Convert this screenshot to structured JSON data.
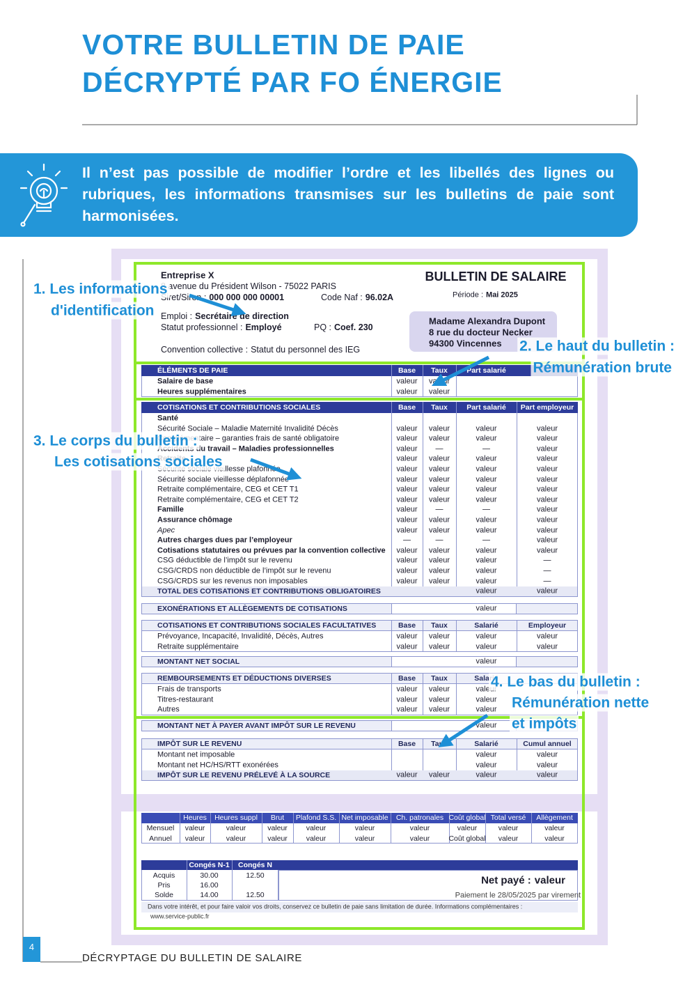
{
  "header": {
    "title": [
      "VOTRE BULLETIN DE PAIE",
      "DÉCRYPTÉ PAR FO ÉNERGIE"
    ]
  },
  "info_box": {
    "text": "Il n’est pas possible de modifier l’ordre et les libellés des lignes ou rubriques, les informations transmises sur les bulletins de paie sont harmonisées."
  },
  "payslip": {
    "company": "Entreprise X",
    "address": "8 avenue du Président Wilson - 75022 PARIS",
    "id_fields": [
      {
        "label": "Siret/Siren :",
        "value": "000 000 000 00001"
      },
      {
        "label": "Code Naf :",
        "value": "96.02A"
      },
      {
        "label": "Emploi :",
        "value": "Secrétaire de direction"
      },
      {
        "label": "Statut professionnel :",
        "value": "Employé"
      },
      {
        "label": "PQ :",
        "value": "Coef. 230"
      },
      {
        "label": "Convention collective :",
        "value": "Statut du personnel des IEG"
      }
    ],
    "title": "BULLETIN DE SALAIRE",
    "period": {
      "label": "Période :",
      "value": "Mai 2025"
    },
    "employee": [
      "Madame Alexandra Dupont",
      "8 rue du docteur Necker",
      "94300 Vincennes"
    ],
    "sections": [
      {
        "header": [
          "ÉLÉMENTS DE PAIE",
          "Base",
          "Taux",
          "Part salarié"
        ],
        "rows": [
          {
            "cells": [
              "Salaire de base",
              "valeur",
              "valeur"
            ],
            "style": "bold"
          },
          {
            "cells": [
              "Heures supplémentaires",
              "valeur",
              "valeur"
            ],
            "style": "bold"
          }
        ]
      },
      {
        "header": [
          "COTISATIONS ET CONTRIBUTIONS SOCIALES",
          "Base",
          "Taux",
          "Part salarié",
          "Part employeur"
        ],
        "rows": [
          {
            "cells": [
              "Santé"
            ],
            "style": "bold"
          },
          {
            "cells": [
              "Sécurité Sociale – Maladie Maternité Invalidité Décès",
              "valeur",
              "valeur",
              "valeur",
              "valeur"
            ]
          },
          {
            "cells": [
              "Complémentaire – garanties frais de santé obligatoire",
              "valeur",
              "valeur",
              "valeur",
              "valeur"
            ]
          },
          {
            "cells": [
              "Accidents du travail – Maladies professionnelles",
              "valeur",
              "—",
              "—",
              "valeur"
            ],
            "style": "bold"
          },
          {
            "cells": [
              "Retraite",
              "valeur",
              "valeur",
              "valeur",
              "valeur"
            ],
            "style": "bold"
          },
          {
            "cells": [
              "Sécurité sociale vieillesse plafonnée",
              "valeur",
              "valeur",
              "valeur",
              "valeur"
            ]
          },
          {
            "cells": [
              "Sécurité sociale vieillesse déplafonnée",
              "valeur",
              "valeur",
              "valeur",
              "valeur"
            ]
          },
          {
            "cells": [
              "Retraite complémentaire, CEG et CET T1",
              "valeur",
              "valeur",
              "valeur",
              "valeur"
            ]
          },
          {
            "cells": [
              "Retraite complémentaire, CEG et CET T2",
              "valeur",
              "valeur",
              "valeur",
              "valeur"
            ]
          },
          {
            "cells": [
              "Famille",
              "valeur",
              "—",
              "—",
              "valeur"
            ],
            "style": "bold"
          },
          {
            "cells": [
              "Assurance chômage",
              "valeur",
              "valeur",
              "valeur",
              "valeur"
            ],
            "style": "bold"
          },
          {
            "cells": [
              "Apec",
              "valeur",
              "valeur",
              "valeur",
              "valeur"
            ],
            "style": "italic"
          },
          {
            "cells": [
              "Autres charges dues par l’employeur",
              "—",
              "—",
              "—",
              "valeur"
            ],
            "style": "bold"
          },
          {
            "cells": [
              "Cotisations statutaires ou prévues par la convention collective",
              "valeur",
              "valeur",
              "valeur",
              "valeur"
            ],
            "style": "bold"
          },
          {
            "cells": [
              "CSG déductible de l’impôt sur le revenu",
              "valeur",
              "valeur",
              "valeur",
              "—"
            ]
          },
          {
            "cells": [
              "CSG/CRDS non déductible de l’impôt sur le revenu",
              "valeur",
              "valeur",
              "valeur",
              "—"
            ]
          },
          {
            "cells": [
              "CSG/CRDS sur les revenus non imposables",
              "valeur",
              "valeur",
              "valeur",
              "—"
            ]
          },
          {
            "cells": [
              "TOTAL DES COTISATIONS ET CONTRIBUTIONS OBLIGATOIRES",
              null,
              null,
              "valeur",
              "valeur"
            ],
            "style": "total"
          }
        ]
      },
      {
        "label": "EXONÉRATIONS ET ALLÈGEMENTS DE COTISATIONS",
        "value": "valeur"
      },
      {
        "header": [
          "COTISATIONS ET CONTRIBUTIONS SOCIALES FACULTATIVES",
          "Base",
          "Taux",
          "Salarié",
          "Employeur"
        ],
        "rows": [
          {
            "cells": [
              "Prévoyance, Incapacité, Invalidité, Décès, Autres",
              "valeur",
              "valeur",
              "valeur",
              "valeur"
            ]
          },
          {
            "cells": [
              "Retraite supplémentaire",
              "valeur",
              "valeur",
              "valeur",
              "valeur"
            ]
          }
        ]
      },
      {
        "label": "MONTANT NET SOCIAL",
        "value": "valeur"
      },
      {
        "header": [
          "REMBOURSEMENTS ET DÉDUCTIONS DIVERSES",
          "Base",
          "Taux",
          "Salarié"
        ],
        "rows": [
          {
            "cells": [
              "Frais de transports",
              "valeur",
              "valeur",
              "valeur"
            ]
          },
          {
            "cells": [
              "Titres-restaurant",
              "valeur",
              "valeur",
              "valeur"
            ]
          },
          {
            "cells": [
              "Autres",
              "valeur",
              "valeur",
              "valeur"
            ]
          }
        ]
      },
      {
        "label": "MONTANT NET À PAYER AVANT IMPÔT SUR LE REVENU",
        "value": "valeur"
      },
      {
        "header": [
          "IMPÔT SUR LE REVENU",
          "Base",
          "Taux",
          "Salarié",
          "Cumul annuel"
        ],
        "rows": [
          {
            "cells": [
              "Montant net imposable",
              null,
              null,
              "valeur",
              "valeur"
            ]
          },
          {
            "cells": [
              "Montant net HC/HS/RTT exonérées",
              null,
              null,
              "valeur",
              "valeur"
            ]
          },
          {
            "cells": [
              "IMPÔT SUR LE REVENU PRÉLEVÉ À LA SOURCE",
              "valeur",
              "valeur",
              "valeur",
              "valeur"
            ],
            "style": "total"
          }
        ]
      }
    ],
    "summary": {
      "header": [
        null,
        "Heures",
        "Heures suppl",
        "Brut",
        "Plafond S.S.",
        "Net imposable",
        "Ch. patronales",
        "Coût global",
        "Total versé",
        "Allègement"
      ],
      "rows": [
        [
          "Mensuel",
          "valeur",
          "valeur",
          "valeur",
          "valeur",
          "valeur",
          "valeur",
          "valeur",
          "valeur",
          "valeur"
        ],
        [
          "Annuel",
          "valeur",
          "valeur",
          "valeur",
          "valeur",
          "valeur",
          "valeur",
          "Coût global",
          "valeur",
          "valeur"
        ]
      ]
    },
    "leave": {
      "header": [
        null,
        "Congés N-1",
        "Congés N"
      ],
      "rows": [
        [
          "Acquis",
          "30.00",
          "12.50"
        ],
        [
          "Pris",
          "16.00",
          null
        ],
        [
          "Solde",
          "14.00",
          "12.50"
        ]
      ]
    },
    "net_paid": {
      "label": "Net payé :",
      "value": "valeur"
    },
    "payment": "Paiement le 28/05/2025 par virement",
    "footnote": "Dans votre intérêt, et pour faire valoir vos droits, conservez ce bulletin de paie sans limitation de durée. Informations complémentaires :",
    "website": "www.service-public.fr"
  },
  "callouts": [
    {
      "lines": [
        "1. Les informations",
        "d'identification"
      ]
    },
    {
      "lines": [
        "2. Le haut du bulletin :",
        "Rémunération brute"
      ]
    },
    {
      "lines": [
        "3. Le corps du bulletin :",
        "Les cotisations sociales"
      ]
    },
    {
      "lines": [
        "4. Le bas du bulletin :",
        "Rémunération nette",
        "et impôts"
      ]
    }
  ],
  "footer": {
    "page_number": "4",
    "text": "DÉCRYPTAGE DU BULLETIN DE SALAIRE"
  }
}
